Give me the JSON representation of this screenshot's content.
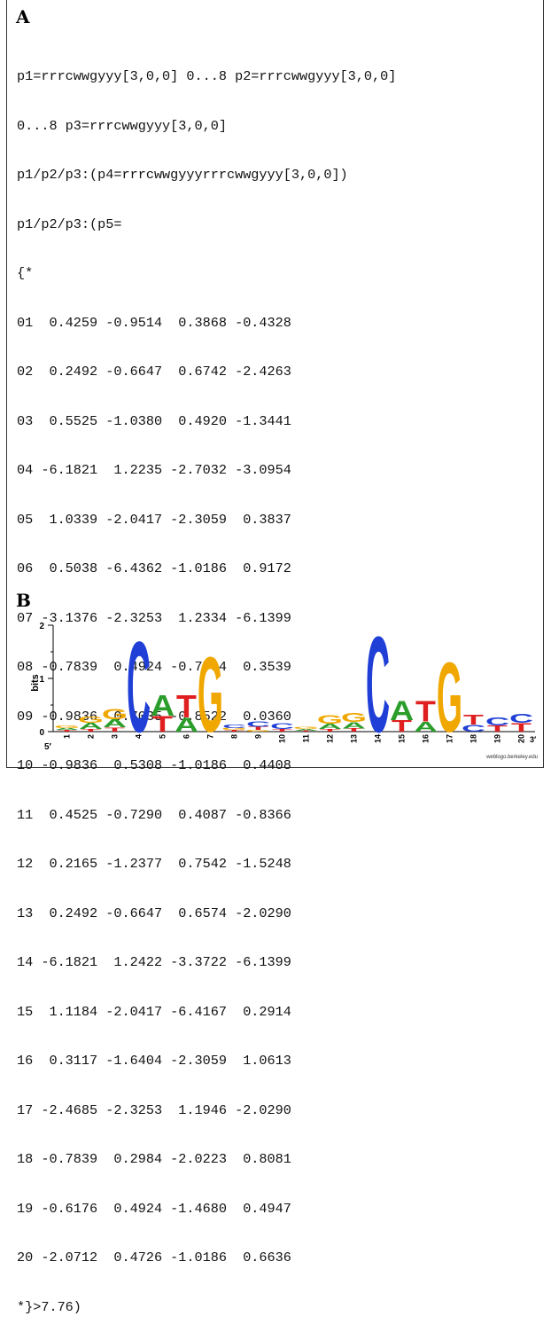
{
  "panel_a": {
    "label": "A",
    "header_lines": [
      "p1=rrrcwwgyyy[3,0,0] 0...8 p2=rrrcwwgyyy[3,0,0]",
      "0...8 p3=rrrcwwgyyy[3,0,0]",
      "p1/p2/p3:(p4=rrrcwwgyyyrrrcwwgyyy[3,0,0])",
      "p1/p2/p3:(p5=",
      "{*"
    ],
    "matrix_rows": [
      "01  0.4259 -0.9514  0.3868 -0.4328",
      "02  0.2492 -0.6647  0.6742 -2.4263",
      "03  0.5525 -1.0380  0.4920 -1.3441",
      "04 -6.1821  1.2235 -2.7032 -3.0954",
      "05  1.0339 -2.0417 -2.3059  0.3837",
      "06  0.5038 -6.4362 -1.0186  0.9172",
      "07 -3.1376 -2.3253  1.2334 -6.1399",
      "08 -0.7839  0.4924 -0.7784  0.3539",
      "09 -0.9836  0.7035 -0.8522  0.0360",
      "10 -0.9836  0.5308 -1.0186  0.4408",
      "11  0.4525 -0.7290  0.4087 -0.8366",
      "12  0.2165 -1.2377  0.7542 -1.5248",
      "13  0.2492 -0.6647  0.6574 -2.0290",
      "14 -6.1821  1.2422 -3.3722 -6.1399",
      "15  1.1184 -2.0417 -6.4167  0.2914",
      "16  0.3117 -1.6404 -2.3059  1.0613",
      "17 -2.4685 -2.3253  1.1946 -2.0290",
      "18 -0.7839  0.2984 -2.0223  0.8081",
      "19 -0.6176  0.4924 -1.4680  0.4947",
      "20 -2.0712  0.4726 -1.0186  0.6636"
    ],
    "footer_line": "*}>7.76)"
  },
  "panel_b": {
    "label": "B",
    "y_axis_label": "bits",
    "y_ticks": [
      "0",
      "1",
      "2"
    ],
    "five_prime_label": "5′",
    "three_prime_label": "3′",
    "credit": "weblogo.berkeley.edu",
    "colors": {
      "A": "#2a9d2a",
      "C": "#1f3fd6",
      "G": "#f0a800",
      "T": "#e02020"
    },
    "positions": [
      {
        "pos": "1",
        "stack": [
          [
            "T",
            0.03
          ],
          [
            "A",
            0.04
          ],
          [
            "G",
            0.05
          ]
        ]
      },
      {
        "pos": "2",
        "stack": [
          [
            "T",
            0.05
          ],
          [
            "A",
            0.12
          ],
          [
            "G",
            0.12
          ]
        ]
      },
      {
        "pos": "3",
        "stack": [
          [
            "T",
            0.08
          ],
          [
            "A",
            0.15
          ],
          [
            "G",
            0.2
          ]
        ]
      },
      {
        "pos": "4",
        "stack": [
          [
            "C",
            1.75
          ]
        ]
      },
      {
        "pos": "5",
        "stack": [
          [
            "T",
            0.3
          ],
          [
            "A",
            0.4
          ]
        ]
      },
      {
        "pos": "6",
        "stack": [
          [
            "A",
            0.27
          ],
          [
            "T",
            0.43
          ]
        ]
      },
      {
        "pos": "7",
        "stack": [
          [
            "G",
            1.45
          ]
        ]
      },
      {
        "pos": "8",
        "stack": [
          [
            "T",
            0.03
          ],
          [
            "G",
            0.04
          ],
          [
            "C",
            0.07
          ]
        ]
      },
      {
        "pos": "9",
        "stack": [
          [
            "G",
            0.03
          ],
          [
            "T",
            0.06
          ],
          [
            "C",
            0.1
          ]
        ]
      },
      {
        "pos": "10",
        "stack": [
          [
            "T",
            0.05
          ],
          [
            "C",
            0.11
          ]
        ]
      },
      {
        "pos": "11",
        "stack": [
          [
            "T",
            0.02
          ],
          [
            "A",
            0.03
          ],
          [
            "G",
            0.04
          ]
        ]
      },
      {
        "pos": "12",
        "stack": [
          [
            "T",
            0.05
          ],
          [
            "A",
            0.1
          ],
          [
            "G",
            0.17
          ]
        ]
      },
      {
        "pos": "13",
        "stack": [
          [
            "T",
            0.06
          ],
          [
            "A",
            0.12
          ],
          [
            "G",
            0.18
          ]
        ]
      },
      {
        "pos": "14",
        "stack": [
          [
            "C",
            1.85
          ]
        ]
      },
      {
        "pos": "15",
        "stack": [
          [
            "T",
            0.22
          ],
          [
            "A",
            0.38
          ]
        ]
      },
      {
        "pos": "16",
        "stack": [
          [
            "A",
            0.19
          ],
          [
            "T",
            0.4
          ]
        ]
      },
      {
        "pos": "17",
        "stack": [
          [
            "G",
            1.35
          ]
        ]
      },
      {
        "pos": "18",
        "stack": [
          [
            "C",
            0.13
          ],
          [
            "T",
            0.19
          ]
        ]
      },
      {
        "pos": "19",
        "stack": [
          [
            "T",
            0.12
          ],
          [
            "C",
            0.15
          ]
        ]
      },
      {
        "pos": "20",
        "stack": [
          [
            "T",
            0.17
          ],
          [
            "C",
            0.18
          ]
        ]
      }
    ]
  }
}
